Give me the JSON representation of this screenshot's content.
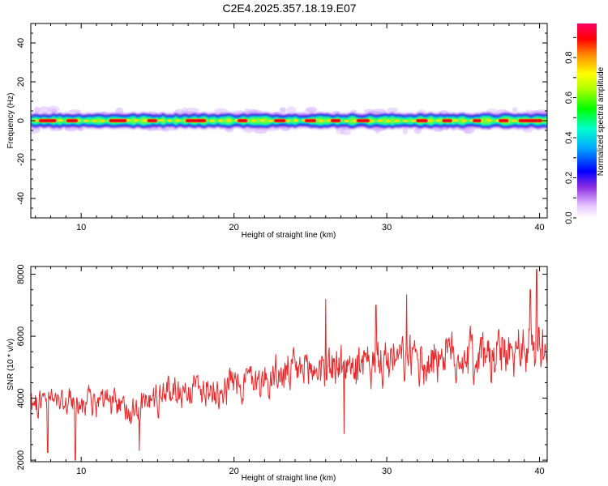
{
  "figure": {
    "title": "C2E4.2025.357.18.19.E07"
  },
  "chart_data": [
    {
      "type": "heatmap",
      "title": "",
      "xlabel": "Height of straight line (km)",
      "ylabel": "Frequency (Hz)",
      "xlim": [
        6.7,
        40.5
      ],
      "ylim": [
        -50,
        50
      ],
      "xticks": [
        10,
        20,
        30,
        40
      ],
      "yticks": [
        -40,
        -20,
        0,
        20,
        40
      ],
      "description_values": {
        "band_center_hz": 0,
        "band_halfwidth_hz": 3,
        "hot_segments_km": [
          [
            7.2,
            8.4
          ],
          [
            9.0,
            9.8
          ],
          [
            11.8,
            13.0
          ],
          [
            14.3,
            15.0
          ],
          [
            16.8,
            18.2
          ],
          [
            20.2,
            20.9
          ],
          [
            22.6,
            23.4
          ],
          [
            24.6,
            25.4
          ],
          [
            26.3,
            27.0
          ],
          [
            28.0,
            28.9
          ],
          [
            31.9,
            32.7
          ],
          [
            33.6,
            34.3
          ],
          [
            35.6,
            36.2
          ],
          [
            37.3,
            38.0
          ],
          [
            38.6,
            40.2
          ]
        ]
      },
      "colorbar": {
        "label": "Normalized spectral amplitude",
        "ticks": [
          0.0,
          0.2,
          0.4,
          0.6,
          0.8
        ],
        "tick_labels": [
          "0.0",
          "0.2",
          "0.4",
          "0.6",
          "0.8"
        ],
        "range": [
          0,
          0.97
        ]
      }
    },
    {
      "type": "line",
      "title": "",
      "xlabel": "Height of straight line (km)",
      "ylabel": "SNR (10 * v/v)",
      "xlim": [
        6.7,
        40.5
      ],
      "ylim": [
        1950,
        8250
      ],
      "xticks": [
        10,
        20,
        30,
        40
      ],
      "yticks": [
        2000,
        4000,
        6000,
        8000
      ],
      "series": [
        {
          "name": "SNR",
          "color": "#e8282a",
          "x": [
            6.7,
            8,
            9.5,
            11,
            12.5,
            14,
            15.5,
            17,
            18.5,
            20,
            21.5,
            23,
            24.5,
            26,
            27.5,
            29,
            30.5,
            32,
            33.5,
            35,
            36.5,
            38,
            39.5,
            40.5
          ],
          "trend": [
            3900,
            3950,
            3850,
            3850,
            3700,
            3750,
            4200,
            4300,
            4300,
            4500,
            4600,
            4700,
            4850,
            5050,
            5000,
            5050,
            5150,
            5200,
            5350,
            5400,
            5350,
            5450,
            5650,
            5700
          ],
          "min": 2000,
          "max": 8150,
          "peaks": [
            [
              26.0,
              7200
            ],
            [
              29.3,
              7000
            ],
            [
              31.3,
              7350
            ],
            [
              39.4,
              7500
            ],
            [
              39.8,
              8150
            ]
          ],
          "troughs": [
            [
              9.6,
              2000
            ],
            [
              13.8,
              2300
            ],
            [
              7.8,
              2250
            ],
            [
              27.2,
              2850
            ]
          ]
        }
      ]
    }
  ],
  "colors": {
    "line": "#e8282a",
    "axis": "#000000"
  }
}
